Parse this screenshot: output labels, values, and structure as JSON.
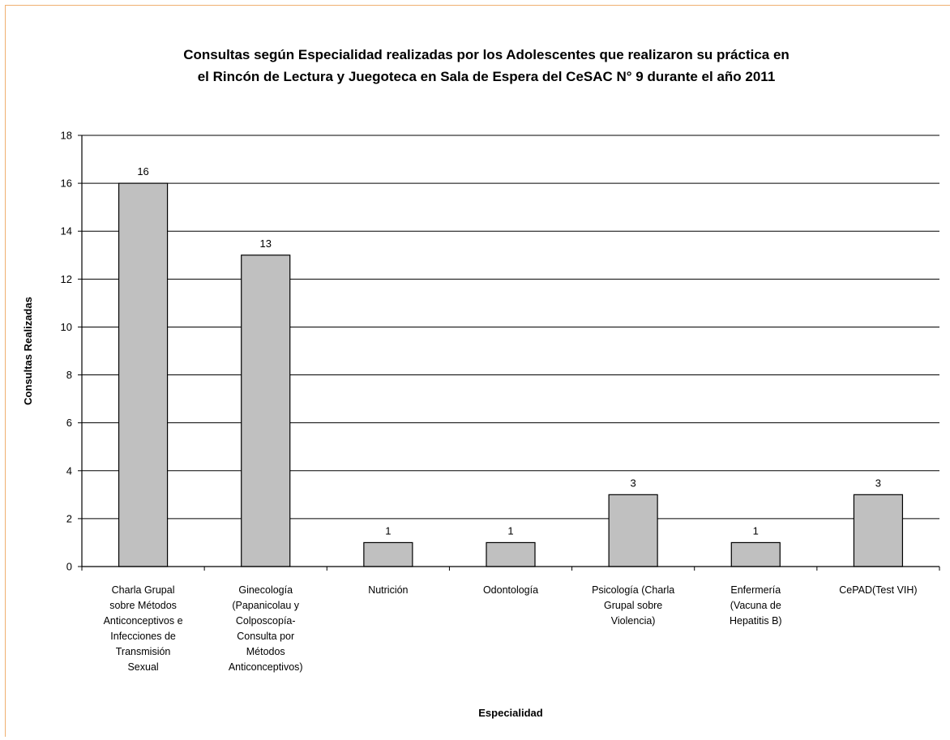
{
  "chart_data": {
    "type": "bar",
    "title_lines": [
      "Consultas según Especialidad realizadas por los Adolescentes que realizaron su práctica en",
      "el Rincón de Lectura y Juegoteca en Sala de Espera del CeSAC N° 9 durante el año 2011"
    ],
    "xlabel": "Especialidad",
    "ylabel": "Consultas Realizadas",
    "ylim": [
      0,
      18
    ],
    "yticks": [
      0,
      2,
      4,
      6,
      8,
      10,
      12,
      14,
      16,
      18
    ],
    "grid": true,
    "legend": "none",
    "colors": {
      "bar_fill": "#c0c0c0",
      "bar_stroke": "#000000",
      "grid": "#000000"
    },
    "categories": [
      [
        "Charla Grupal",
        "sobre Métodos",
        "Anticonceptivos e",
        "Infecciones de",
        "Transmisión",
        "Sexual"
      ],
      [
        "Ginecología",
        "(Papanicolau y",
        "Colposcopía-",
        "Consulta por",
        "Métodos",
        "Anticonceptivos)"
      ],
      [
        "Nutrición"
      ],
      [
        "Odontología"
      ],
      [
        "Psicología (Charla",
        "Grupal sobre",
        "Violencia)"
      ],
      [
        "Enfermería",
        "(Vacuna de",
        "Hepatitis B)"
      ],
      [
        "CePAD(Test VIH)"
      ]
    ],
    "values": [
      16,
      13,
      1,
      1,
      3,
      1,
      3
    ]
  }
}
